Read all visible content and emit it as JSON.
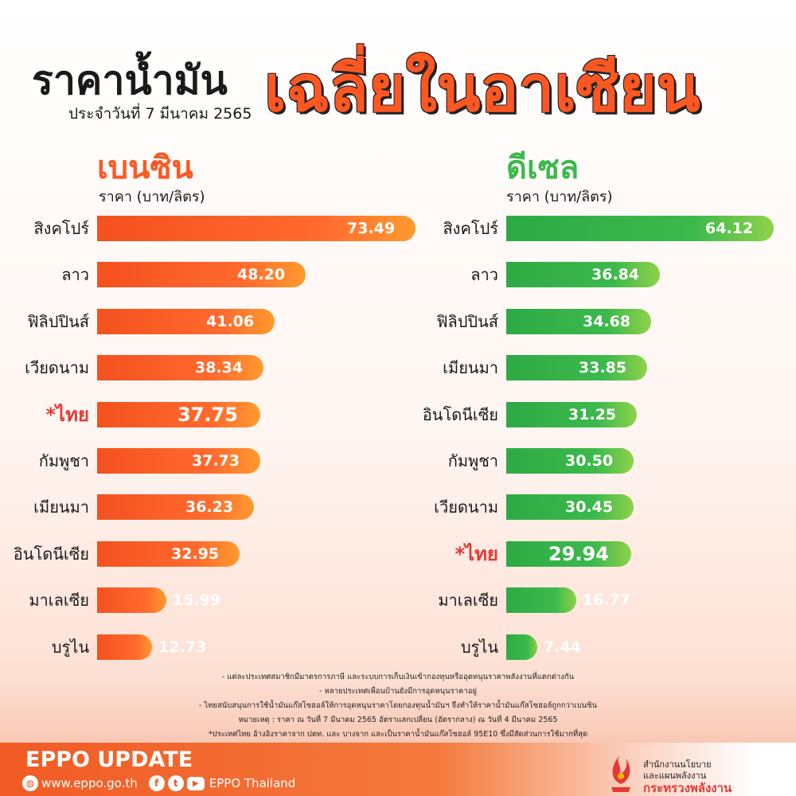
{
  "header": {
    "title_left": "ราคาน้ำมัน",
    "title_right": "เฉลี่ยในอาเซียน",
    "date": "ประจำวันที่ 7 มีนาคม 2565"
  },
  "colors": {
    "benzin": "#ff5722",
    "diesel": "#3cb94c",
    "highlight": "#e53935"
  },
  "chart_data": [
    {
      "type": "bar",
      "orientation": "horizontal",
      "title": "เบนซิน",
      "ylabel": "ราคา (บาท/ลิตร)",
      "categories": [
        "สิงคโปร์",
        "ลาว",
        "ฟิลิปปินส์",
        "เวียดนาม",
        "*ไทย",
        "กัมพูชา",
        "เมียนมา",
        "อินโดนีเซีย",
        "มาเลเซีย",
        "บรูไน"
      ],
      "values": [
        73.49,
        48.2,
        41.06,
        38.34,
        37.75,
        37.73,
        36.23,
        32.95,
        15.99,
        12.73
      ],
      "value_labels": [
        "73.49",
        "48.20",
        "41.06",
        "38.34",
        "37.75",
        "37.73",
        "36.23",
        "32.95",
        "15.99",
        "12.73"
      ],
      "highlight_index": 4
    },
    {
      "type": "bar",
      "orientation": "horizontal",
      "title": "ดีเซล",
      "ylabel": "ราคา (บาท/ลิตร)",
      "categories": [
        "สิงคโปร์",
        "ลาว",
        "ฟิลิปปินส์",
        "เมียนมา",
        "อินโดนีเซีย",
        "กัมพูชา",
        "เวียดนาม",
        "*ไทย",
        "มาเลเซีย",
        "บรูไน"
      ],
      "values": [
        64.12,
        36.84,
        34.68,
        33.85,
        31.25,
        30.5,
        30.45,
        29.94,
        16.77,
        7.44
      ],
      "value_labels": [
        "64.12",
        "36.84",
        "34.68",
        "33.85",
        "31.25",
        "30.50",
        "30.45",
        "29.94",
        "16.77",
        "7.44"
      ],
      "highlight_index": 7
    }
  ],
  "notes": [
    "- แต่ละประเทศสมาชิกมีมาตรการภาษี และระบบการเก็บเงินเข้ากองทุนหรืออุดหนุนราคาพลังงานที่แตกต่างกัน",
    "- หลายประเทศเพื่อนบ้านยังมีการอุดหนุนราคาอยู่",
    "- ไทยสนับสนุนการใช้น้ำมันแก๊สโซฮอล์ให้การอุดหนุนราคาโดยกองทุนน้ำมันฯ จึงทำให้ราคาน้ำมันแก๊สโซฮอล์ถูกกว่าเบนซิน",
    "หมายเหตุ : ราคา ณ วันที่ 7 มีนาคม 2565 อัตราแลกเปลี่ยน (อัตรากลาง) ณ วันที่ 4 มีนาคม 2565",
    "*ประเทศไทย อ้างอิงราคาจาก ปตท. และ บางจาก และเป็นราคาน้ำมันแก๊สโซฮอล์ 95E10 ซึ่งมีสัดส่วนการใช้มากที่สุด"
  ],
  "footer": {
    "brand": "EPPO UPDATE",
    "website": "www.eppo.go.th",
    "social": "EPPO Thailand",
    "icons": [
      "globe-icon",
      "facebook-icon",
      "twitter-icon",
      "youtube-icon"
    ],
    "org_line1": "สำนักงานนโยบาย",
    "org_line2": "และแผนพลังงาน",
    "org_line3": "กระทรวงพลังงาน"
  }
}
